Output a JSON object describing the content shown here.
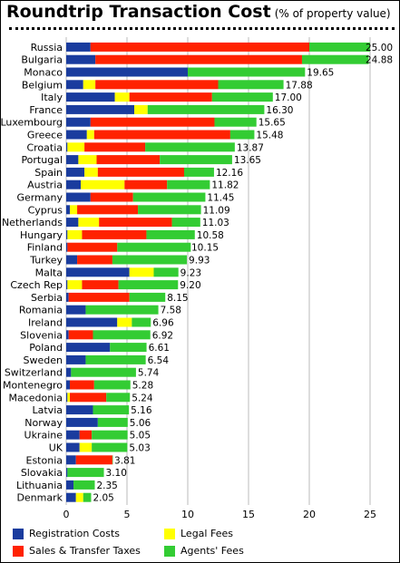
{
  "header": {
    "title": "Roundtrip Transaction Cost",
    "subtitle": "(% of property value)"
  },
  "colors": {
    "registration": "#1a3c9e",
    "legal": "#ffff00",
    "taxes": "#ff2200",
    "agents": "#33cc33",
    "grid": "#bbbbbb"
  },
  "legend": [
    {
      "key": "registration",
      "label": "Registration Costs",
      "color": "#1a3c9e"
    },
    {
      "key": "legal",
      "label": "Legal Fees",
      "color": "#ffff00"
    },
    {
      "key": "taxes",
      "label": "Sales & Transfer Taxes",
      "color": "#ff2200"
    },
    {
      "key": "agents",
      "label": "Agents' Fees",
      "color": "#33cc33"
    }
  ],
  "chart_data": {
    "type": "bar",
    "orientation": "horizontal",
    "stacked": true,
    "xlim": [
      0,
      25
    ],
    "xticks": [
      0,
      5,
      10,
      15,
      20,
      25
    ],
    "grid": true,
    "legend_position": "bottom",
    "categories": [
      "Russia",
      "Bulgaria",
      "Monaco",
      "Belgium",
      "Italy",
      "France",
      "Luxembourg",
      "Greece",
      "Croatia",
      "Portugal",
      "Spain",
      "Austria",
      "Germany",
      "Cyprus",
      "Netherlands",
      "Hungary",
      "Finland",
      "Turkey",
      "Malta",
      "Czech Rep",
      "Serbia",
      "Romania",
      "Ireland",
      "Slovenia",
      "Poland",
      "Sweden",
      "Switzerland",
      "Montenegro",
      "Macedonia",
      "Latvia",
      "Norway",
      "Ukraine",
      "UK",
      "Estonia",
      "Slovakia",
      "Lithuania",
      "Denmark"
    ],
    "totals": [
      "25.00",
      "24.88",
      "19.65",
      "17.88",
      "17.00",
      "16.30",
      "15.65",
      "15.48",
      "13.87",
      "13.65",
      "12.16",
      "11.82",
      "11.45",
      "11.09",
      "11.03",
      "10.58",
      "10.15",
      "9.93",
      "9.23",
      "9.20",
      "8.15",
      "7.58",
      "6.96",
      "6.92",
      "6.61",
      "6.54",
      "5.74",
      "5.28",
      "5.24",
      "5.16",
      "5.06",
      "5.05",
      "5.03",
      "3.81",
      "3.10",
      "2.35",
      "2.05"
    ],
    "series": [
      {
        "name": "Registration Costs",
        "key": "registration",
        "values": [
          2.0,
          2.4,
          10.0,
          1.4,
          4.0,
          5.6,
          2.0,
          1.7,
          0.1,
          1.0,
          1.5,
          1.2,
          2.0,
          0.3,
          1.0,
          0.1,
          0.1,
          0.9,
          5.2,
          0.1,
          0.2,
          1.6,
          4.2,
          0.2,
          3.6,
          1.6,
          0.4,
          0.3,
          0.1,
          2.2,
          2.6,
          1.1,
          1.1,
          0.8,
          0.1,
          0.6,
          0.8
        ]
      },
      {
        "name": "Legal Fees",
        "key": "legal",
        "values": [
          0.0,
          0.0,
          0.0,
          1.0,
          1.2,
          1.1,
          0.0,
          0.6,
          1.4,
          1.5,
          1.1,
          3.6,
          0.0,
          0.6,
          1.7,
          1.2,
          0.0,
          0.0,
          2.0,
          1.2,
          0.0,
          0.0,
          1.2,
          0.0,
          0.0,
          0.0,
          0.0,
          0.0,
          0.2,
          0.0,
          0.0,
          0.0,
          1.0,
          0.0,
          0.0,
          0.0,
          0.6
        ]
      },
      {
        "name": "Sales & Transfer Taxes",
        "key": "taxes",
        "values": [
          18.0,
          17.0,
          0.0,
          10.1,
          6.8,
          0.0,
          10.2,
          11.2,
          5.0,
          5.2,
          7.1,
          3.5,
          3.5,
          5.0,
          6.0,
          5.3,
          4.1,
          2.9,
          0.0,
          3.0,
          5.0,
          0.0,
          0.0,
          2.0,
          0.0,
          0.0,
          0.0,
          2.0,
          3.0,
          0.0,
          0.0,
          1.0,
          0.0,
          3.0,
          0.0,
          0.0,
          0.0
        ]
      },
      {
        "name": "Agents' Fees",
        "key": "agents",
        "values": [
          5.0,
          5.48,
          9.65,
          5.38,
          5.0,
          9.6,
          3.45,
          1.98,
          7.37,
          5.95,
          2.46,
          3.52,
          5.95,
          5.19,
          2.33,
          3.98,
          6.05,
          6.13,
          2.03,
          4.9,
          2.95,
          5.98,
          1.56,
          4.72,
          3.01,
          4.94,
          5.34,
          2.98,
          1.94,
          2.96,
          2.46,
          2.95,
          2.93,
          0.01,
          3.0,
          1.75,
          0.65
        ]
      }
    ]
  }
}
